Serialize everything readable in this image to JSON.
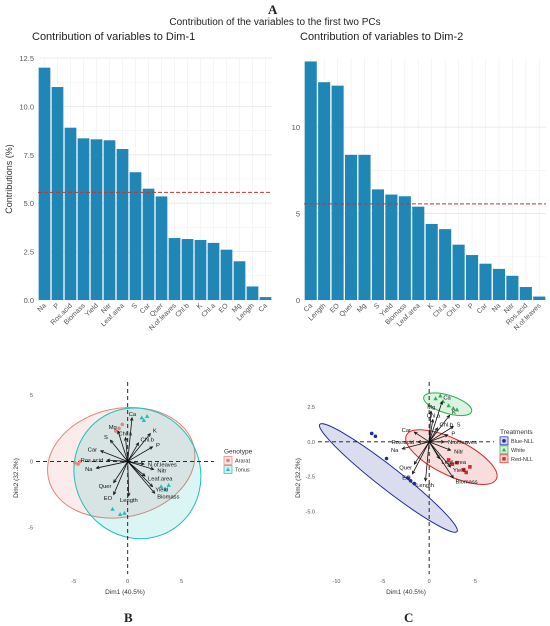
{
  "figure": {
    "panel_a": "A",
    "panel_b": "B",
    "panel_c": "C",
    "suptitle": "Contribution of the variables to the first two PCs"
  },
  "colors": {
    "bar": "#1f86b5",
    "refline": "#c0392b",
    "ararat": "#e8837a",
    "ararat_fill": "#f8d9d5",
    "tonus": "#1fbfbf",
    "blue": "#1f2c9c",
    "white": "#2bb24c",
    "red": "#d62b2b"
  },
  "chart_data": [
    {
      "type": "bar",
      "title": "Contribution of variables to Dim-1",
      "ylabel": "Contributions (%)",
      "ylim": [
        0,
        12.5
      ],
      "yticks": [
        0,
        2.5,
        5,
        7.5,
        10,
        12.5
      ],
      "ytick_labels": [
        "0.0",
        "2.5",
        "5.0",
        "7.5",
        "10.0",
        "12.5"
      ],
      "reference_line": 5.56,
      "categories": [
        "Na",
        "P",
        "Ros.acid",
        "Biomass",
        "Yield",
        "Nitr",
        "Leaf.area",
        "S",
        "Car",
        "Quer",
        "N.of.leaves",
        "Chl.b",
        "K",
        "Chl.a",
        "EO",
        "Mg",
        "Length",
        "Ca"
      ],
      "values": [
        12.0,
        11.0,
        8.9,
        8.35,
        8.3,
        8.25,
        7.8,
        6.6,
        5.75,
        5.35,
        3.2,
        3.15,
        3.1,
        2.95,
        2.6,
        2.0,
        0.7,
        0.15
      ]
    },
    {
      "type": "bar",
      "title": "Contribution of variables to Dim-2",
      "ylabel": "",
      "ylim": [
        0,
        14
      ],
      "yticks": [
        0,
        5,
        10
      ],
      "ytick_labels": [
        "0",
        "5",
        "10"
      ],
      "reference_line": 5.56,
      "categories": [
        "Ca",
        "Length",
        "EO",
        "Quer",
        "Mg",
        "S",
        "Yield",
        "Biomass",
        "Leaf.area",
        "K",
        "Chl.a",
        "Chl.b",
        "P",
        "Car",
        "Na",
        "Nitr",
        "Ros.acid",
        "N.of.leaves"
      ],
      "values": [
        13.8,
        12.6,
        12.4,
        8.4,
        8.4,
        6.4,
        6.1,
        6.0,
        5.4,
        4.4,
        4.1,
        3.2,
        2.6,
        2.1,
        1.8,
        1.4,
        0.75,
        0.2
      ]
    },
    {
      "type": "scatter",
      "title": "",
      "xlabel": "Dim1 (40.5%)",
      "ylabel": "Dim2 (32.2%)",
      "xlim": [
        -8.5,
        8
      ],
      "ylim": [
        -8.5,
        6
      ],
      "xticks": [
        -5,
        0,
        5
      ],
      "xtick_labels": [
        "-5",
        "0",
        "5"
      ],
      "yticks": [
        5,
        0,
        -5
      ],
      "ytick_labels": [
        "5",
        "0",
        "-5"
      ],
      "legend_title": "Genotype",
      "legend_position": "right",
      "groups": [
        {
          "name": "Ararat",
          "ellipse": {
            "cx": -0.6,
            "cy": -0.1,
            "rx": 6.9,
            "ry": 4.1,
            "angle": 12
          },
          "points": [
            [
              -4.9,
              -0.1
            ],
            [
              -4.6,
              -0.2
            ],
            [
              -4.4,
              0.0
            ],
            [
              -0.8,
              2.5
            ],
            [
              -1.1,
              2.3
            ],
            [
              -0.5,
              2.8
            ]
          ]
        },
        {
          "name": "Tonus",
          "ellipse": {
            "cx": 0.9,
            "cy": -0.9,
            "rx": 5.8,
            "ry": 5.0,
            "angle": 30
          },
          "points": [
            [
              1.3,
              3.3
            ],
            [
              1.5,
              3.1
            ],
            [
              1.8,
              3.4
            ],
            [
              -0.3,
              -3.9
            ],
            [
              -0.7,
              -4.0
            ],
            [
              -1.4,
              -3.6
            ],
            [
              3.1,
              -1.9
            ],
            [
              3.5,
              -2.1
            ],
            [
              3.8,
              -1.8
            ]
          ]
        }
      ],
      "vectors": [
        {
          "label": "Ca",
          "x": 0.4,
          "y": 3.3
        },
        {
          "label": "Mg",
          "x": -0.9,
          "y": 2.3
        },
        {
          "label": "Chl.a",
          "x": -0.2,
          "y": 1.8
        },
        {
          "label": "Chl.b",
          "x": 1.0,
          "y": 1.4
        },
        {
          "label": "K",
          "x": 2.1,
          "y": 2.1
        },
        {
          "label": "P",
          "x": 2.3,
          "y": 1.1
        },
        {
          "label": "S",
          "x": -1.6,
          "y": 1.6
        },
        {
          "label": "Car",
          "x": -2.5,
          "y": 0.8
        },
        {
          "label": "Ros.acid",
          "x": -1.9,
          "y": 0.1
        },
        {
          "label": "Na",
          "x": -2.9,
          "y": -0.5
        },
        {
          "label": "Quer",
          "x": -1.3,
          "y": -1.6
        },
        {
          "label": "EO",
          "x": -1.3,
          "y": -2.5
        },
        {
          "label": "Length",
          "x": 0.1,
          "y": -2.6
        },
        {
          "label": "N.of.leaves",
          "x": 1.5,
          "y": -0.2
        },
        {
          "label": "Nitr",
          "x": 2.4,
          "y": -0.6
        },
        {
          "label": "Leaf.area",
          "x": 1.6,
          "y": -1.1
        },
        {
          "label": "Yield",
          "x": 2.3,
          "y": -1.9
        },
        {
          "label": "Biomass",
          "x": 2.5,
          "y": -2.4
        }
      ]
    },
    {
      "type": "scatter",
      "title": "",
      "xlabel": "Dim1 (40.5%)",
      "ylabel": "Dim2 (32.2%)",
      "xlim": [
        -12,
        7
      ],
      "ylim": [
        -9.5,
        4.3
      ],
      "xticks": [
        -10,
        -5,
        0,
        5
      ],
      "xtick_labels": [
        "-10",
        "-5",
        "0",
        "5"
      ],
      "yticks": [
        2.5,
        0,
        -2.5,
        -5
      ],
      "ytick_labels": [
        "2.5",
        "0.0",
        "-2.5",
        "-5.0"
      ],
      "legend_title": "Treatments",
      "legend_position": "right",
      "groups": [
        {
          "name": "Blue-NLL",
          "ellipse": {
            "cx": -4.4,
            "cy": -2.6,
            "rx": 9.4,
            "ry": 0.8,
            "angle": -38
          },
          "points": [
            [
              -6.2,
              0.6
            ],
            [
              -5.8,
              0.4
            ],
            [
              -4.6,
              -1.2
            ],
            [
              -2.0,
              -2.8
            ],
            [
              -1.6,
              -3.0
            ],
            [
              -2.3,
              -2.6
            ]
          ]
        },
        {
          "name": "White",
          "ellipse": {
            "cx": 2.0,
            "cy": 2.7,
            "rx": 2.7,
            "ry": 0.65,
            "angle": -17
          },
          "points": [
            [
              0.7,
              3.1
            ],
            [
              1.2,
              3.3
            ],
            [
              1.5,
              2.9
            ],
            [
              2.1,
              2.6
            ],
            [
              2.6,
              2.4
            ],
            [
              3.0,
              2.3
            ]
          ]
        },
        {
          "name": "Red-NLL",
          "ellipse": {
            "cx": 2.4,
            "cy": -1.1,
            "rx": 5.4,
            "ry": 1.3,
            "angle": -26
          },
          "points": [
            [
              2.1,
              -1.3
            ],
            [
              2.5,
              -1.6
            ],
            [
              3.0,
              -1.5
            ],
            [
              3.7,
              -2.0
            ],
            [
              4.0,
              -2.2
            ],
            [
              4.4,
              -1.8
            ]
          ]
        }
      ],
      "vectors": [
        {
          "label": "Ca",
          "x": 1.4,
          "y": 2.9
        },
        {
          "label": "Mg",
          "x": 0.2,
          "y": 2.2
        },
        {
          "label": "Chl.a",
          "x": 0.4,
          "y": 1.6
        },
        {
          "label": "Chl.b",
          "x": 0.9,
          "y": 1.0
        },
        {
          "label": "K",
          "x": 2.2,
          "y": 1.9
        },
        {
          "label": "S",
          "x": 2.6,
          "y": 1.1
        },
        {
          "label": "P",
          "x": 2.0,
          "y": 0.5
        },
        {
          "label": "Car",
          "x": -1.6,
          "y": 0.7
        },
        {
          "label": "Ros.acid",
          "x": -1.2,
          "y": 0.0
        },
        {
          "label": "Na",
          "x": -2.9,
          "y": -0.5
        },
        {
          "label": "Quer",
          "x": -1.6,
          "y": -1.6
        },
        {
          "label": "EO",
          "x": -1.8,
          "y": -2.3
        },
        {
          "label": "Length",
          "x": -0.4,
          "y": -2.8
        },
        {
          "label": "N.of.leaves",
          "x": 1.6,
          "y": 0.0
        },
        {
          "label": "Nitr",
          "x": 2.3,
          "y": -0.6
        },
        {
          "label": "Leaf.area",
          "x": 1.1,
          "y": -1.2
        },
        {
          "label": "Yield",
          "x": 2.3,
          "y": -1.8
        },
        {
          "label": "Biomass",
          "x": 2.6,
          "y": -2.6
        }
      ]
    }
  ]
}
